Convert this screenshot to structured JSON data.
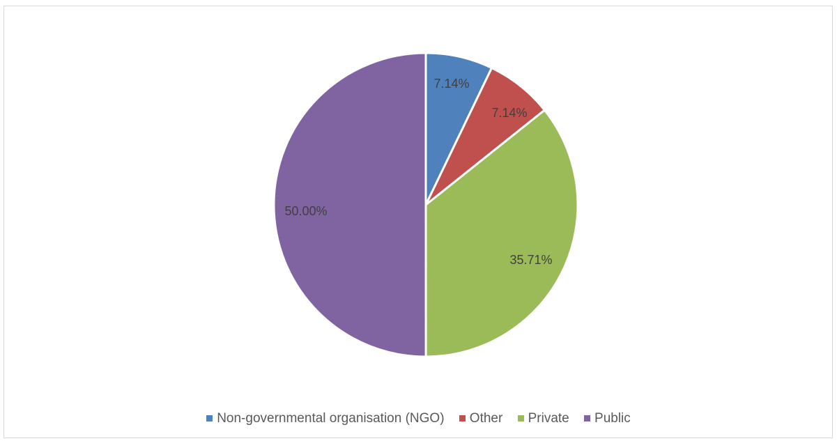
{
  "chart_data": {
    "type": "pie",
    "title": "",
    "legend_position": "bottom",
    "slices": [
      {
        "label": "Non-governmental organisation (NGO)",
        "value": 7.14,
        "display": "7.14%",
        "color": "#4f81bd"
      },
      {
        "label": "Other",
        "value": 7.14,
        "display": "7.14%",
        "color": "#c0504d"
      },
      {
        "label": "Private",
        "value": 35.71,
        "display": "35.71%",
        "color": "#9bbb59"
      },
      {
        "label": "Public",
        "value": 50.0,
        "display": "50.00%",
        "color": "#8064a2"
      }
    ]
  }
}
